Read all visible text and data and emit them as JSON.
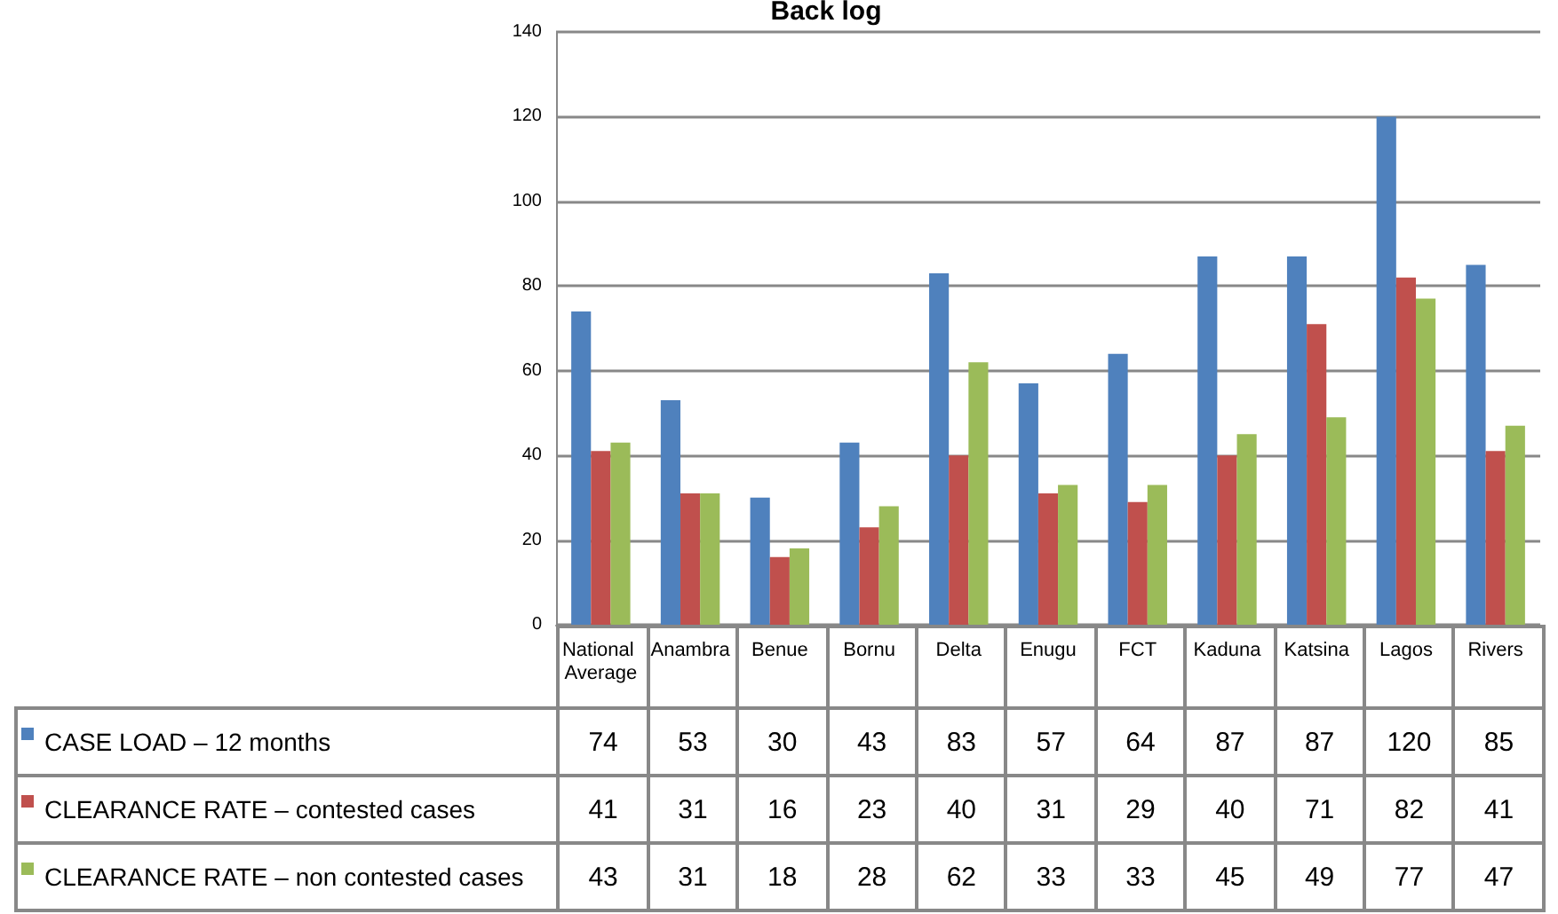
{
  "chart_data": {
    "type": "bar",
    "title": "Back log",
    "categories": [
      "National Average",
      "Anambra",
      "Benue",
      "Bornu",
      "Delta",
      "Enugu",
      "FCT",
      "Kaduna",
      "Katsina",
      "Lagos",
      "Rivers"
    ],
    "series": [
      {
        "name": "CASE LOAD – 12 months",
        "color": "#4f81bd",
        "values": [
          74,
          53,
          30,
          43,
          83,
          57,
          64,
          87,
          87,
          120,
          85
        ]
      },
      {
        "name": "CLEARANCE RATE – contested cases",
        "color": "#c0504d",
        "values": [
          41,
          31,
          16,
          23,
          40,
          31,
          29,
          40,
          71,
          82,
          41
        ]
      },
      {
        "name": "CLEARANCE RATE – non contested cases",
        "color": "#9bbb59",
        "values": [
          43,
          31,
          18,
          28,
          62,
          33,
          33,
          45,
          49,
          77,
          47
        ]
      }
    ],
    "ylim": [
      0,
      140
    ],
    "yticks": [
      0,
      20,
      40,
      60,
      80,
      100,
      120,
      140
    ],
    "grid": "y",
    "legend": "bottom left",
    "data_labels": true
  }
}
